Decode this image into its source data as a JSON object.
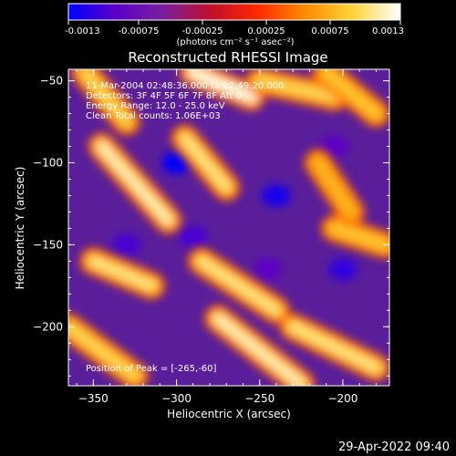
{
  "colorbar": {
    "tick_labels": [
      "-0.0013",
      "-0.00075",
      "-0.00025",
      "0.00025",
      "0.00075",
      "0.0013"
    ],
    "tick_values": [
      -0.0013,
      -0.00075,
      -0.00025,
      0.00025,
      0.00075,
      0.0013
    ],
    "range": [
      -0.0013,
      0.0013
    ],
    "units": "(photons cm⁻² s⁻¹ asec⁻²)",
    "stops": [
      "#0000ff",
      "#5b00c8",
      "#7a1f9e",
      "#c0102a",
      "#ff2a00",
      "#ff8c00",
      "#ffd43a",
      "#ffffff"
    ]
  },
  "chart_data": {
    "type": "heatmap",
    "title": "Reconstructed RHESSI Image",
    "xlabel": "Heliocentric X (arcsec)",
    "ylabel": "Heliocentric Y (arcsec)",
    "xlim": [
      -365,
      -172
    ],
    "ylim": [
      -236,
      -43
    ],
    "x_ticks": [
      -350,
      -300,
      -250,
      -200
    ],
    "y_ticks": [
      -50,
      -100,
      -150,
      -200
    ],
    "x_tick_labels": [
      "−350",
      "−300",
      "−250",
      "−200"
    ],
    "y_tick_labels": [
      "−50",
      "−100",
      "−150",
      "−200"
    ],
    "annotations": [
      "11-Mar-2004 02:48:36.000 to 02:49:20.000",
      "Detectors: 3F 4F 5F 6F 7F 8F Att 0",
      "Energy Range: 12.0 - 25.0 keV",
      "Clean     Total counts: 1.06E+03"
    ],
    "peak_label": "Position of Peak = [-265,-60]",
    "peak": [
      -265,
      -60
    ],
    "bright_features": [
      {
        "x0": -355,
        "y0": -45,
        "x1": -330,
        "y1": -75,
        "level": 0.001
      },
      {
        "x0": -345,
        "y0": -90,
        "x1": -305,
        "y1": -135,
        "level": 0.0012
      },
      {
        "x0": -290,
        "y0": -45,
        "x1": -255,
        "y1": -60,
        "level": 0.0013
      },
      {
        "x0": -295,
        "y0": -85,
        "x1": -270,
        "y1": -115,
        "level": 0.0011
      },
      {
        "x0": -250,
        "y0": -50,
        "x1": -205,
        "y1": -60,
        "level": 0.001
      },
      {
        "x0": -210,
        "y0": -45,
        "x1": -180,
        "y1": -70,
        "level": 0.0009
      },
      {
        "x0": -350,
        "y0": -160,
        "x1": -315,
        "y1": -175,
        "level": 0.0011
      },
      {
        "x0": -365,
        "y0": -200,
        "x1": -325,
        "y1": -230,
        "level": 0.001
      },
      {
        "x0": -285,
        "y0": -160,
        "x1": -240,
        "y1": -190,
        "level": 0.0011
      },
      {
        "x0": -275,
        "y0": -195,
        "x1": -225,
        "y1": -235,
        "level": 0.0012
      },
      {
        "x0": -230,
        "y0": -200,
        "x1": -180,
        "y1": -225,
        "level": 0.0011
      },
      {
        "x0": -205,
        "y0": -140,
        "x1": -175,
        "y1": -150,
        "level": 0.0009
      },
      {
        "x0": -215,
        "y0": -100,
        "x1": -195,
        "y1": -130,
        "level": 0.0008
      }
    ],
    "dark_features": [
      {
        "x": -300,
        "y": -100,
        "level": -0.0013
      },
      {
        "x": -240,
        "y": -120,
        "level": -0.0012
      },
      {
        "x": -330,
        "y": -150,
        "level": -0.001
      },
      {
        "x": -290,
        "y": -145,
        "level": -0.001
      },
      {
        "x": -200,
        "y": -165,
        "level": -0.0011
      },
      {
        "x": -245,
        "y": -165,
        "level": -0.0009
      },
      {
        "x": -205,
        "y": -90,
        "level": -0.0009
      }
    ]
  },
  "footer": {
    "timestamp": "29-Apr-2022 09:40"
  }
}
